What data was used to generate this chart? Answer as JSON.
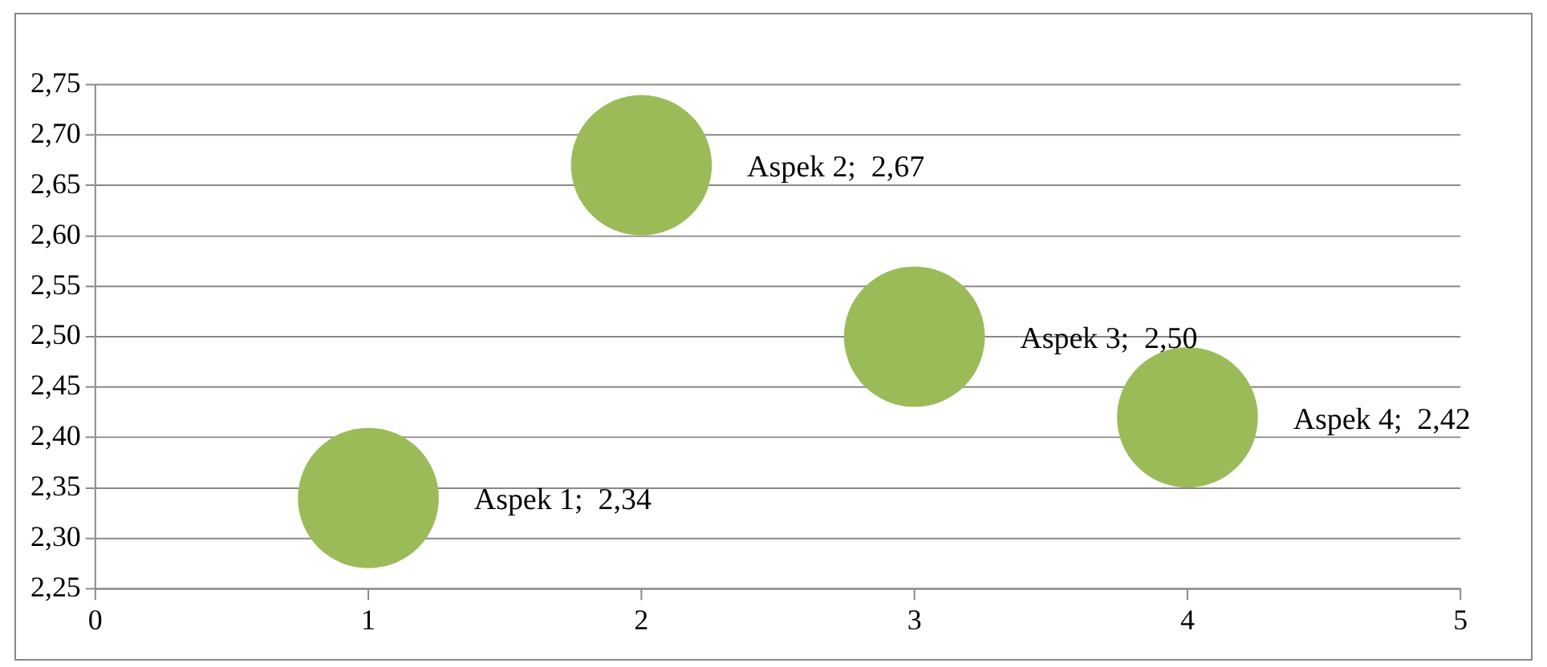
{
  "chart_data": {
    "type": "bubble",
    "x": [
      1,
      2,
      3,
      4
    ],
    "values": [
      2.34,
      2.67,
      2.5,
      2.42
    ],
    "sizes": [
      1,
      1,
      1,
      1
    ],
    "color": "#9bbb59",
    "value_labels": [
      "Aspek 1;  2,34",
      "Aspek 2;  2,67",
      "Aspek 3;  2,50",
      "Aspek 4;  2,42"
    ],
    "xlim": [
      0,
      5
    ],
    "xticks": [
      0,
      1,
      2,
      3,
      4,
      5
    ],
    "ylim": [
      2.25,
      2.75
    ],
    "yticks": [
      {
        "value": 2.25,
        "label": "2,25"
      },
      {
        "value": 2.3,
        "label": "2,30"
      },
      {
        "value": 2.35,
        "label": "2,35"
      },
      {
        "value": 2.4,
        "label": "2,40"
      },
      {
        "value": 2.45,
        "label": "2,45"
      },
      {
        "value": 2.5,
        "label": "2,50"
      },
      {
        "value": 2.55,
        "label": "2,55"
      },
      {
        "value": 2.6,
        "label": "2,60"
      },
      {
        "value": 2.65,
        "label": "2,65"
      },
      {
        "value": 2.7,
        "label": "2,70"
      },
      {
        "value": 2.75,
        "label": "2,75"
      }
    ],
    "grid": "y"
  }
}
